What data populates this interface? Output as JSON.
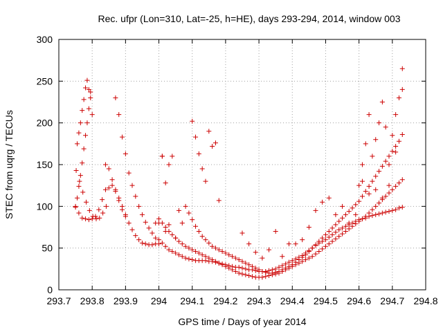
{
  "chart_data": {
    "type": "scatter",
    "title": "Rec. ufpr (Lon=310, Lat=-25, h=HE), days 293-294, 2014, window 003",
    "xlabel": "GPS time / Days of year 2014",
    "ylabel": "STEC from uqrg / TECUs",
    "xlim": [
      293.7,
      294.8
    ],
    "ylim": [
      0,
      300
    ],
    "x_ticks": [
      "293.7",
      "293.8",
      "293.9",
      "294",
      "294.1",
      "294.2",
      "294.3",
      "294.4",
      "294.5",
      "294.6",
      "294.7",
      "294.8"
    ],
    "y_ticks": [
      "0",
      "50",
      "100",
      "150",
      "200",
      "250",
      "300"
    ],
    "grid": true,
    "marker": "+",
    "marker_color": "#cc0000",
    "x": [
      293.75,
      293.755,
      293.76,
      293.765,
      293.77,
      293.775,
      293.78,
      293.785,
      293.79,
      293.795,
      293.755,
      293.76,
      293.765,
      293.77,
      293.775,
      293.78,
      293.785,
      293.79,
      293.795,
      293.8,
      293.752,
      293.762,
      293.772,
      293.782,
      293.792,
      293.802,
      293.812,
      293.822,
      293.832,
      293.842,
      293.75,
      293.76,
      293.77,
      293.78,
      293.79,
      293.8,
      293.81,
      293.82,
      293.83,
      293.84,
      293.85,
      293.86,
      293.87,
      293.88,
      293.89,
      293.9,
      293.84,
      293.85,
      293.86,
      293.87,
      293.88,
      293.89,
      293.9,
      293.91,
      293.92,
      293.93,
      293.94,
      293.95,
      293.96,
      293.97,
      293.98,
      293.99,
      294.0,
      293.87,
      293.88,
      293.89,
      293.9,
      293.91,
      293.92,
      293.93,
      293.94,
      293.95,
      293.96,
      293.97,
      293.98,
      293.99,
      294.0,
      294.01,
      294.02,
      294.03,
      294.04,
      294.05,
      294.06,
      294.07,
      294.08,
      294.09,
      294.1,
      294.11,
      294.12,
      294.13,
      294.14,
      294.15,
      294.16,
      294.17,
      294.18,
      294.19,
      294.2,
      294.21,
      294.22,
      294.23,
      294.24,
      294.25,
      294.26,
      294.27,
      294.28,
      294.29,
      294.3,
      294.31,
      294.32,
      294.33,
      294.34,
      294.35,
      294.36,
      294.37,
      294.38,
      294.39,
      294.4,
      294.41,
      294.42,
      294.43,
      294.44,
      294.45,
      294.46,
      294.47,
      294.48,
      294.49,
      294.5,
      294.51,
      294.52,
      294.53,
      294.54,
      294.55,
      294.56,
      294.57,
      294.58,
      294.59,
      294.6,
      294.61,
      294.62,
      294.63,
      294.64,
      294.65,
      294.66,
      294.67,
      294.68,
      294.69,
      294.7,
      294.71,
      294.72,
      294.73,
      294.01,
      294.02,
      294.03,
      294.04,
      294.05,
      294.06,
      294.07,
      294.08,
      294.09,
      294.1,
      294.11,
      294.12,
      294.13,
      294.14,
      294.15,
      294.16,
      294.17,
      294.18,
      294.19,
      294.2,
      294.21,
      294.22,
      294.23,
      294.24,
      294.25,
      294.26,
      294.27,
      294.28,
      294.29,
      294.3,
      294.31,
      294.32,
      294.33,
      294.34,
      294.35,
      294.36,
      294.37,
      294.38,
      294.39,
      294.4,
      294.41,
      294.42,
      294.43,
      294.44,
      294.45,
      294.46,
      294.47,
      294.48,
      294.49,
      294.5,
      294.51,
      294.52,
      294.53,
      294.54,
      294.55,
      294.56,
      294.57,
      294.58,
      294.59,
      294.6,
      294.61,
      294.62,
      294.63,
      294.64,
      294.65,
      294.66,
      294.67,
      294.68,
      294.69,
      294.7,
      294.71,
      294.72,
      294.73,
      294.08,
      294.09,
      294.1,
      294.11,
      294.12,
      294.13,
      294.14,
      294.15,
      294.16,
      294.17,
      294.18,
      294.19,
      294.2,
      294.21,
      294.22,
      294.23,
      294.24,
      294.25,
      294.26,
      294.27,
      294.28,
      294.29,
      294.3,
      294.31,
      294.32,
      294.33,
      294.34,
      294.35,
      294.36,
      294.37,
      294.38,
      294.39,
      294.4,
      294.41,
      294.42,
      294.43,
      294.44,
      294.45,
      294.46,
      294.47,
      294.48,
      294.49,
      294.5,
      294.51,
      294.52,
      294.53,
      294.54,
      294.55,
      294.56,
      294.57,
      294.58,
      294.59,
      294.6,
      294.61,
      294.62,
      294.63,
      294.64,
      294.65,
      294.66,
      294.67,
      294.68,
      294.69,
      294.7,
      294.71,
      294.72,
      294.73,
      294.1,
      294.11,
      294.12,
      294.13,
      294.14,
      294.15,
      294.16,
      294.17,
      294.18,
      294.6,
      294.61,
      294.62,
      294.63,
      294.64,
      294.65,
      294.66,
      294.67,
      294.68,
      294.69,
      294.7,
      294.71,
      294.72,
      294.73,
      294.25,
      294.27,
      294.29,
      294.31,
      294.33,
      294.35,
      294.37,
      294.39,
      294.41,
      294.43,
      294.45,
      294.47,
      294.49,
      294.51,
      294.53,
      294.55,
      294.57,
      294.59,
      294.61,
      294.63,
      294.65,
      294.67,
      294.69,
      294.71,
      294.73,
      294.0,
      294.01,
      294.02,
      294.03,
      294.04,
      294.05,
      294.06,
      294.07,
      293.99,
      294.0,
      294.01,
      294.02,
      294.03
    ],
    "y": [
      99,
      110,
      124,
      137,
      152,
      169,
      185,
      200,
      217,
      237,
      175,
      188,
      200,
      215,
      228,
      242,
      251,
      240,
      230,
      210,
      143,
      130,
      117,
      105,
      95,
      88,
      85,
      86,
      92,
      100,
      100,
      92,
      86,
      85,
      84,
      85,
      88,
      96,
      108,
      120,
      122,
      125,
      118,
      107,
      96,
      88,
      150,
      145,
      132,
      120,
      110,
      100,
      90,
      80,
      72,
      65,
      60,
      56,
      55,
      54,
      54,
      55,
      55,
      230,
      210,
      183,
      163,
      140,
      125,
      112,
      100,
      90,
      81,
      74,
      68,
      62,
      60,
      56,
      52,
      48,
      46,
      44,
      42,
      40,
      38,
      37,
      36,
      35,
      35,
      35,
      35,
      34,
      34,
      33,
      32,
      31,
      30,
      29,
      28,
      27,
      27,
      26,
      25,
      24,
      24,
      23,
      22,
      22,
      22,
      23,
      24,
      25,
      27,
      29,
      31,
      33,
      35,
      37,
      39,
      41,
      44,
      47,
      50,
      53,
      56,
      58,
      60,
      63,
      66,
      69,
      72,
      74,
      76,
      78,
      80,
      82,
      84,
      85,
      86,
      88,
      89,
      90,
      91,
      92,
      93,
      94,
      95,
      96,
      98,
      99,
      80,
      75,
      70,
      66,
      62,
      58,
      55,
      52,
      50,
      48,
      46,
      44,
      42,
      40,
      38,
      36,
      34,
      32,
      30,
      28,
      26,
      24,
      22,
      20,
      19,
      18,
      17,
      16,
      15,
      15,
      15,
      16,
      17,
      18,
      19,
      20,
      22,
      24,
      26,
      28,
      30,
      32,
      34,
      36,
      38,
      40,
      43,
      46,
      49,
      52,
      55,
      58,
      61,
      64,
      67,
      70,
      73,
      76,
      79,
      82,
      85,
      88,
      92,
      96,
      100,
      104,
      108,
      112,
      116,
      120,
      124,
      128,
      132,
      100,
      92,
      84,
      76,
      70,
      64,
      60,
      56,
      52,
      50,
      48,
      46,
      44,
      42,
      40,
      38,
      36,
      34,
      32,
      30,
      28,
      26,
      24,
      22,
      21,
      20,
      20,
      21,
      22,
      24,
      26,
      28,
      30,
      33,
      36,
      39,
      42,
      46,
      50,
      54,
      58,
      62,
      66,
      70,
      74,
      78,
      82,
      86,
      90,
      94,
      98,
      102,
      106,
      112,
      118,
      124,
      130,
      136,
      142,
      148,
      154,
      160,
      166,
      172,
      178,
      186,
      202,
      183,
      163,
      145,
      130,
      190,
      172,
      176,
      107,
      125,
      150,
      175,
      210,
      160,
      180,
      200,
      225,
      195,
      150,
      185,
      210,
      230,
      265,
      68,
      55,
      45,
      38,
      48,
      70,
      40,
      55,
      55,
      60,
      75,
      95,
      105,
      110,
      90,
      100,
      80,
      90,
      130,
      115,
      120,
      110,
      125,
      165,
      240,
      80,
      160,
      128,
      78,
      160,
      62,
      95,
      80,
      80,
      85,
      160,
      70,
      150
    ]
  }
}
